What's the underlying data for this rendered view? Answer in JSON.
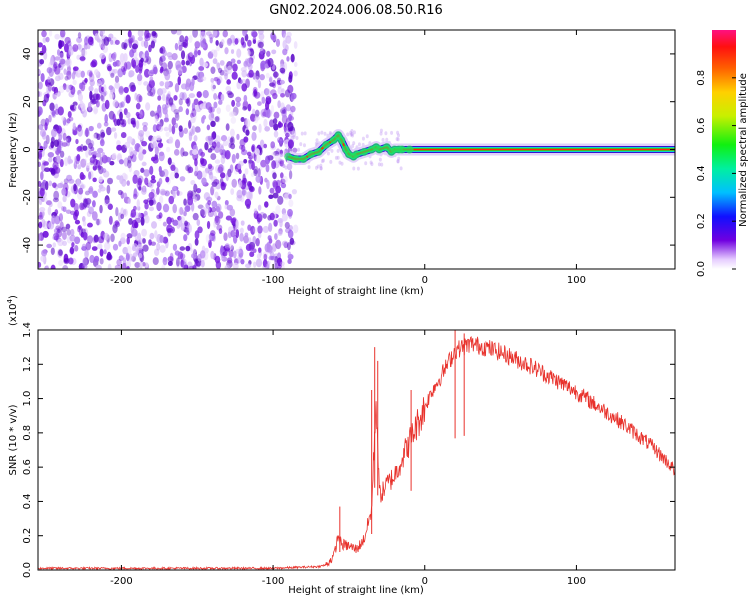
{
  "title": "GN02.2024.006.08.50.R16",
  "colors": {
    "snr_line": "#e8322c",
    "scatter_purple": "#6a0ad8",
    "ridge_red": "#ff2010",
    "ridge_green": "#20e020"
  },
  "chart_data": [
    {
      "type": "heatmap",
      "title": "GN02.2024.006.08.50.R16",
      "xlabel": "Height of straight line (km)",
      "ylabel": "Frequency (Hz)",
      "xlim": [
        -255,
        165
      ],
      "ylim": [
        -50,
        50
      ],
      "x_ticks": [
        -200,
        -100,
        0,
        100
      ],
      "y_ticks": [
        -40,
        -20,
        0,
        20,
        40
      ],
      "x_tick_labels": [
        "-200",
        "-100",
        "0",
        "100"
      ],
      "y_tick_labels": [
        "-40",
        "-20",
        "0",
        "20",
        "40"
      ],
      "noise_region": {
        "x_range": [
          -255,
          -85
        ],
        "y_range": [
          -50,
          50
        ],
        "description_level": "low amplitude 0.0-0.3"
      },
      "ridge": {
        "x": [
          -90,
          -85,
          -80,
          -75,
          -70,
          -65,
          -60,
          -57,
          -55,
          -52,
          -50,
          -47,
          -45,
          -40,
          -35,
          -32,
          -30,
          -25,
          -22,
          -20,
          -17,
          -15,
          -10,
          0,
          50,
          100,
          165
        ],
        "y": [
          -3,
          -4,
          -4,
          -2,
          -1,
          2,
          4,
          6,
          4,
          0,
          -2,
          -3,
          -2,
          -1,
          0,
          1,
          0,
          1,
          -1,
          0,
          0,
          0,
          0,
          0,
          0,
          0,
          0
        ]
      },
      "colorbar": {
        "label": "Normalized spectral amplitude",
        "range": [
          0,
          1
        ],
        "ticks": [
          0.0,
          0.2,
          0.4,
          0.6,
          0.8
        ],
        "tick_labels": [
          "0.0",
          "0.2",
          "0.4",
          "0.6",
          "0.8"
        ]
      }
    },
    {
      "type": "line",
      "xlabel": "Height of straight line (km)",
      "ylabel": "SNR (10 * v/v)",
      "scale_label_base": "(x10",
      "scale_label_exp": "4",
      "scale_label_end": ")",
      "xlim": [
        -255,
        165
      ],
      "ylim": [
        0.0,
        1.4
      ],
      "x_ticks": [
        -200,
        -100,
        0,
        100
      ],
      "y_ticks": [
        0.0,
        0.2,
        0.4,
        0.6,
        0.8,
        1.0,
        1.2,
        1.4
      ],
      "x_tick_labels": [
        "-200",
        "-100",
        "0",
        "100"
      ],
      "y_tick_labels": [
        "0.0",
        "0.2",
        "0.4",
        "0.6",
        "0.8",
        "1.0",
        "1.2",
        "1.4"
      ],
      "series": [
        {
          "x": [
            -255,
            -150,
            -100,
            -70,
            -65,
            -60,
            -57,
            -55,
            -50,
            -45,
            -40,
            -35,
            -33,
            -32,
            -30,
            -28,
            -25,
            -20,
            -15,
            -10,
            -5,
            0,
            5,
            10,
            15,
            20,
            25,
            30,
            35,
            40,
            50,
            60,
            70,
            80,
            90,
            100,
            110,
            120,
            130,
            140,
            150,
            160,
            165
          ],
          "y": [
            0.01,
            0.01,
            0.01,
            0.02,
            0.03,
            0.08,
            0.2,
            0.15,
            0.14,
            0.12,
            0.18,
            0.35,
            0.8,
            1.0,
            0.45,
            0.45,
            0.5,
            0.55,
            0.65,
            0.75,
            0.85,
            0.95,
            1.05,
            1.12,
            1.2,
            1.28,
            1.3,
            1.32,
            1.31,
            1.3,
            1.27,
            1.23,
            1.19,
            1.14,
            1.09,
            1.04,
            0.98,
            0.92,
            0.86,
            0.79,
            0.72,
            0.63,
            0.58
          ],
          "spikes": [
            {
              "x": -56,
              "y": 0.37
            },
            {
              "x": -35,
              "y": 1.05
            },
            {
              "x": -33,
              "y": 1.3
            },
            {
              "x": -31,
              "y": 1.22
            },
            {
              "x": -9,
              "y": 1.05
            },
            {
              "x": 20,
              "y": 1.42
            },
            {
              "x": 26,
              "y": 1.38
            }
          ]
        }
      ]
    }
  ]
}
